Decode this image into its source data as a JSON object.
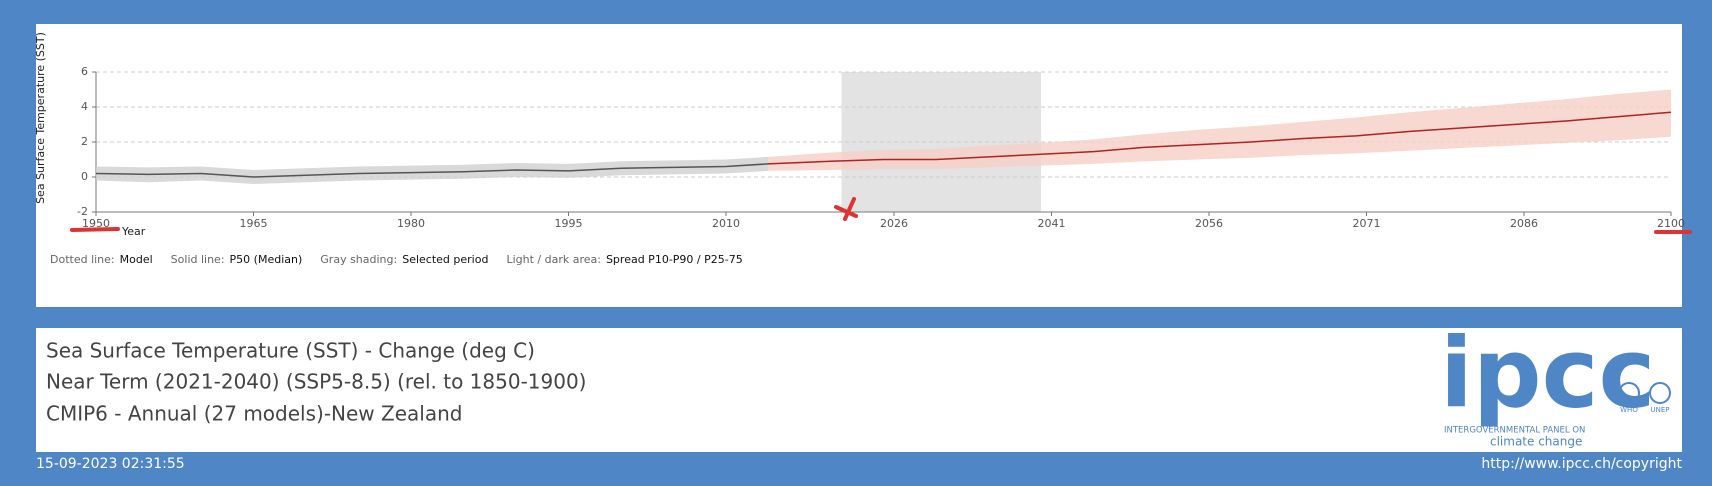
{
  "chart_data": {
    "type": "line",
    "y_label": "Sea Surface Temperature (SST)",
    "x_label": "Year",
    "xlim": [
      1950,
      2100
    ],
    "xticks": [
      1950,
      1965,
      1980,
      1995,
      2010,
      2026,
      2041,
      2056,
      2071,
      2086,
      2100
    ],
    "ylim": [
      -2,
      6
    ],
    "yticks": [
      -2,
      0,
      2,
      4,
      6
    ],
    "grid": true,
    "highlight": [
      2021,
      2040
    ],
    "highlight_color": "#e3e3e3",
    "series": [
      {
        "color": "#555555",
        "band_color": "#cfcfcf",
        "x": [
          1950,
          1955,
          1960,
          1965,
          1970,
          1975,
          1980,
          1985,
          1990,
          1995,
          2000,
          2005,
          2010,
          2014
        ],
        "values": [
          0.2,
          0.15,
          0.2,
          0.0,
          0.1,
          0.2,
          0.25,
          0.3,
          0.4,
          0.35,
          0.5,
          0.55,
          0.6,
          0.75
        ],
        "p10": [
          -0.2,
          -0.3,
          -0.2,
          -0.4,
          -0.3,
          -0.2,
          -0.15,
          -0.1,
          0.0,
          -0.05,
          0.1,
          0.15,
          0.2,
          0.35
        ],
        "p90": [
          0.6,
          0.55,
          0.6,
          0.4,
          0.5,
          0.6,
          0.65,
          0.7,
          0.8,
          0.75,
          0.9,
          0.95,
          1.0,
          1.15
        ]
      },
      {
        "color": "#b22222",
        "band_color": "#f6cfc6",
        "x": [
          2014,
          2020,
          2025,
          2030,
          2035,
          2040,
          2045,
          2050,
          2055,
          2060,
          2065,
          2070,
          2075,
          2080,
          2085,
          2090,
          2095,
          2100
        ],
        "values": [
          0.75,
          0.9,
          1.0,
          1.0,
          1.15,
          1.3,
          1.45,
          1.7,
          1.85,
          2.0,
          2.2,
          2.35,
          2.6,
          2.8,
          3.0,
          3.2,
          3.45,
          3.7
        ],
        "p10": [
          0.35,
          0.4,
          0.45,
          0.45,
          0.55,
          0.65,
          0.75,
          0.9,
          1.0,
          1.1,
          1.25,
          1.35,
          1.5,
          1.65,
          1.8,
          1.95,
          2.1,
          2.3
        ],
        "p90": [
          1.15,
          1.4,
          1.55,
          1.6,
          1.8,
          1.95,
          2.15,
          2.45,
          2.7,
          2.9,
          3.15,
          3.4,
          3.7,
          3.95,
          4.2,
          4.45,
          4.75,
          5.0
        ]
      }
    ],
    "legend_notes": [
      {
        "label": "Dotted line:",
        "text": "Model"
      },
      {
        "label": "Solid line:",
        "text": "P50 (Median)"
      },
      {
        "label": "Gray shading:",
        "text": "Selected period"
      },
      {
        "label": "Light / dark area:",
        "text": "Spread P10-P90 / P25-75"
      }
    ]
  },
  "info": {
    "lines": [
      "Sea Surface Temperature (SST) - Change (deg C)",
      "Near Term (2021-2040) (SSP5-8.5) (rel. to 1850-1900)",
      "CMIP6 - Annual (27 models)-New Zealand"
    ]
  },
  "logo": {
    "name": "ipcc",
    "line1": "INTERGOVERNMENTAL PANEL ON",
    "line2": "climate change",
    "partner1": "WHO",
    "partner2": "UNEP"
  },
  "footer": {
    "timestamp": "15-09-2023 02:31:55",
    "url": "http://www.ipcc.ch/copyright"
  }
}
